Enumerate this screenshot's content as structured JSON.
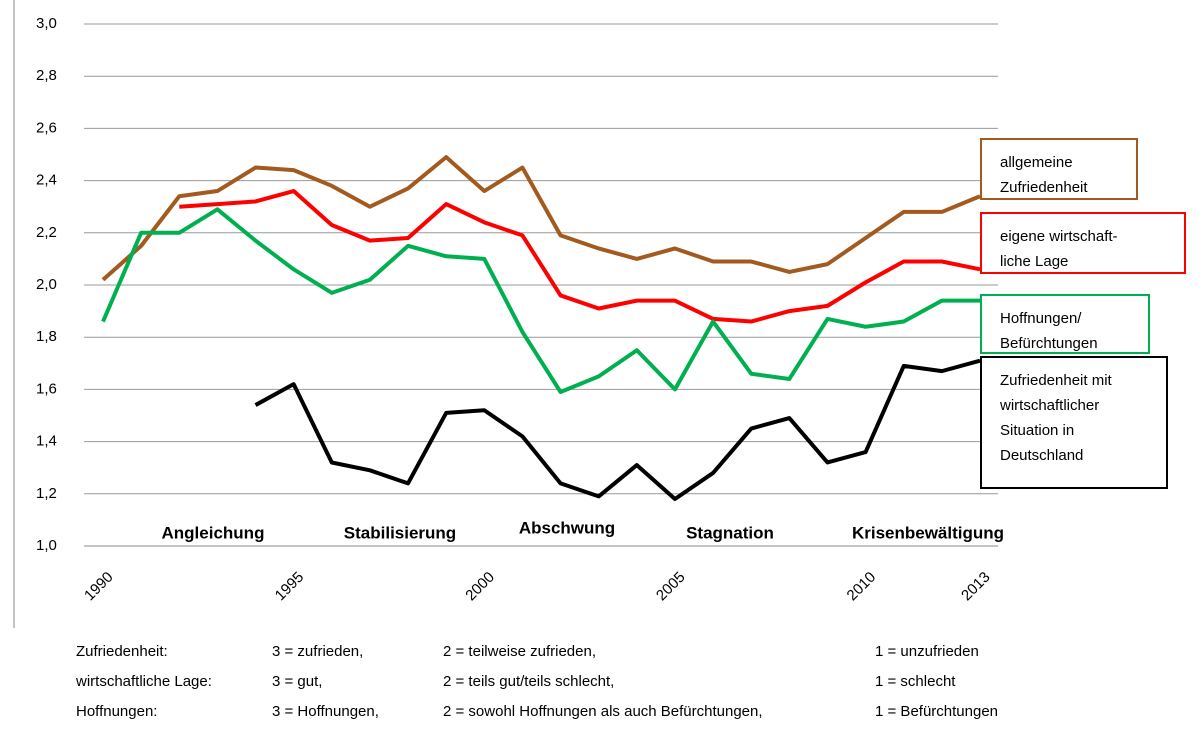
{
  "chart_data": {
    "type": "line",
    "x": [
      1990,
      1991,
      1992,
      1993,
      1994,
      1995,
      1996,
      1997,
      1998,
      1999,
      2000,
      2001,
      2002,
      2003,
      2004,
      2005,
      2006,
      2007,
      2008,
      2009,
      2010,
      2011,
      2012,
      2013
    ],
    "xlim": [
      1990,
      2013
    ],
    "xticks": [
      1990,
      1995,
      2000,
      2005,
      2010,
      2013
    ],
    "ylim": [
      1,
      3
    ],
    "yticks": [
      {
        "value": 1,
        "label": "1,0"
      },
      {
        "value": 1.2,
        "label": "1,2"
      },
      {
        "value": 1.4,
        "label": "1,4"
      },
      {
        "value": 1.6,
        "label": "1,6"
      },
      {
        "value": 1.8,
        "label": "1,8"
      },
      {
        "value": 2,
        "label": "2,0"
      },
      {
        "value": 2.2,
        "label": "2,2"
      },
      {
        "value": 2.4,
        "label": "2,4"
      },
      {
        "value": 2.6,
        "label": "2,6"
      },
      {
        "value": 2.8,
        "label": "2,8"
      },
      {
        "value": 3,
        "label": "3,0"
      }
    ],
    "grid": true,
    "phases": [
      "Angleichung",
      "Stabilisierung",
      "Abschwung",
      "Stagnation",
      "Krisenbewältigung"
    ],
    "series": [
      {
        "name": "allgemeine\nZufriedenheit",
        "color": "#a35a1e",
        "values": [
          2.02,
          2.15,
          2.34,
          2.36,
          2.45,
          2.44,
          2.38,
          2.3,
          2.37,
          2.49,
          2.36,
          2.45,
          2.19,
          2.14,
          2.1,
          2.14,
          2.09,
          2.09,
          2.05,
          2.08,
          2.18,
          2.28,
          2.28,
          2.34
        ]
      },
      {
        "name": "eigene wirtschaft-\nliche Lage",
        "color": "#ff0000",
        "values": [
          null,
          null,
          2.3,
          2.31,
          2.32,
          2.36,
          2.23,
          2.17,
          2.18,
          2.31,
          2.24,
          2.19,
          1.96,
          1.91,
          1.94,
          1.94,
          1.87,
          1.86,
          1.9,
          1.92,
          2.01,
          2.09,
          2.09,
          2.06
        ]
      },
      {
        "name": "Hoffnungen/\nBefürchtungen",
        "color": "#00b050",
        "values": [
          1.86,
          2.2,
          2.2,
          2.29,
          2.17,
          2.06,
          1.97,
          2.02,
          2.15,
          2.11,
          2.1,
          1.82,
          1.59,
          1.65,
          1.75,
          1.6,
          1.86,
          1.66,
          1.64,
          1.87,
          1.84,
          1.86,
          1.94,
          1.94
        ]
      },
      {
        "name": "Zufriedenheit mit\nwirtschaftlicher\nSituation in\nDeutschland",
        "color": "#000000",
        "values": [
          null,
          null,
          null,
          null,
          1.54,
          1.62,
          1.32,
          1.29,
          1.24,
          1.51,
          1.52,
          1.42,
          1.24,
          1.19,
          1.31,
          1.18,
          1.28,
          1.45,
          1.49,
          1.32,
          1.36,
          1.69,
          1.67,
          1.71
        ]
      }
    ]
  },
  "scale_notes": {
    "rows": [
      [
        "Zufriedenheit:",
        "3 = zufrieden,",
        "2 = teilweise zufrieden,",
        "1 = unzufrieden"
      ],
      [
        "wirtschaftliche Lage:",
        "3 = gut,",
        "2 = teils gut/teils schlecht,",
        "1 = schlecht"
      ],
      [
        "Hoffnungen:",
        "3 = Hoffnungen,",
        "2 = sowohl Hoffnungen als auch Befürchtungen,",
        "1 = Befürchtungen"
      ]
    ]
  }
}
